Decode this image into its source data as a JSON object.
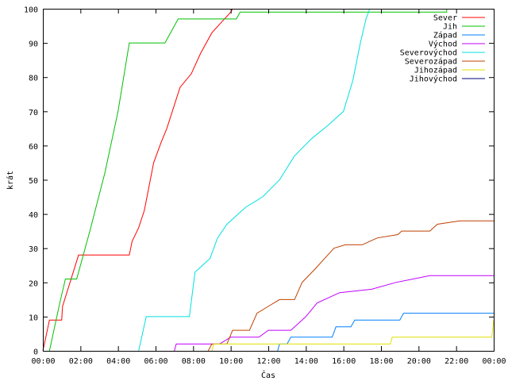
{
  "chart_data": {
    "type": "line",
    "xlabel": "Čas",
    "ylabel": "krát",
    "xlim": [
      0,
      24
    ],
    "ylim": [
      0,
      100
    ],
    "grid": false,
    "legend_position": "top-right",
    "x_ticks": [
      "00:00",
      "02:00",
      "04:00",
      "06:00",
      "08:00",
      "10:00",
      "12:00",
      "14:00",
      "16:00",
      "18:00",
      "20:00",
      "22:00",
      "00:00"
    ],
    "y_ticks": [
      "0",
      "10",
      "20",
      "30",
      "40",
      "50",
      "60",
      "70",
      "80",
      "90",
      "100"
    ],
    "series": [
      {
        "name": "Sever",
        "color": "#ff0000",
        "points": [
          [
            0.0,
            0
          ],
          [
            0.12,
            3
          ],
          [
            0.35,
            9
          ],
          [
            1.0,
            9
          ],
          [
            1.05,
            13
          ],
          [
            1.9,
            28
          ],
          [
            4.6,
            28
          ],
          [
            4.75,
            32
          ],
          [
            5.1,
            36
          ],
          [
            5.4,
            41
          ],
          [
            5.9,
            55
          ],
          [
            6.3,
            61
          ],
          [
            6.6,
            65
          ],
          [
            7.3,
            77
          ],
          [
            7.9,
            81
          ],
          [
            8.4,
            87
          ],
          [
            9.0,
            93
          ],
          [
            9.5,
            96
          ],
          [
            10.0,
            99
          ],
          [
            10.1,
            100
          ]
        ]
      },
      {
        "name": "Jih",
        "color": "#00c000",
        "points": [
          [
            0.35,
            0
          ],
          [
            0.9,
            14
          ],
          [
            1.2,
            21
          ],
          [
            1.8,
            21
          ],
          [
            2.5,
            35
          ],
          [
            3.3,
            52
          ],
          [
            4.0,
            70
          ],
          [
            4.6,
            90
          ],
          [
            6.5,
            90
          ],
          [
            6.9,
            94
          ],
          [
            7.2,
            97
          ],
          [
            10.3,
            97
          ],
          [
            10.5,
            99
          ],
          [
            21.5,
            99
          ],
          [
            21.5,
            100
          ]
        ]
      },
      {
        "name": "Západ",
        "color": "#0080ff",
        "points": [
          [
            12.5,
            0
          ],
          [
            12.6,
            2
          ],
          [
            13.0,
            2
          ],
          [
            13.2,
            4
          ],
          [
            15.4,
            4
          ],
          [
            15.6,
            7
          ],
          [
            16.4,
            7
          ],
          [
            16.6,
            9
          ],
          [
            19.0,
            9
          ],
          [
            19.2,
            11
          ],
          [
            24.0,
            11
          ]
        ]
      },
      {
        "name": "Východ",
        "color": "#c000ff",
        "points": [
          [
            7.0,
            0
          ],
          [
            7.1,
            2
          ],
          [
            9.4,
            2
          ],
          [
            10.0,
            4
          ],
          [
            11.5,
            4
          ],
          [
            12.0,
            6
          ],
          [
            13.2,
            6
          ],
          [
            14.0,
            10
          ],
          [
            14.6,
            14
          ],
          [
            15.8,
            17
          ],
          [
            17.5,
            18
          ],
          [
            18.8,
            20
          ],
          [
            20.6,
            22
          ],
          [
            24.0,
            22
          ]
        ]
      },
      {
        "name": "Severovýchod",
        "color": "#00e0e0",
        "points": [
          [
            5.1,
            0
          ],
          [
            5.5,
            10
          ],
          [
            7.8,
            10
          ],
          [
            8.1,
            23
          ],
          [
            8.9,
            27
          ],
          [
            9.3,
            33
          ],
          [
            9.8,
            37
          ],
          [
            10.2,
            39
          ],
          [
            10.8,
            42
          ],
          [
            11.7,
            45
          ],
          [
            12.6,
            50
          ],
          [
            13.4,
            57
          ],
          [
            14.3,
            62
          ],
          [
            15.2,
            66
          ],
          [
            16.0,
            70
          ],
          [
            16.5,
            79
          ],
          [
            16.9,
            90
          ],
          [
            17.2,
            97
          ],
          [
            17.4,
            100
          ]
        ]
      },
      {
        "name": "Severozápad",
        "color": "#c04000",
        "points": [
          [
            8.8,
            0
          ],
          [
            9.0,
            2
          ],
          [
            9.8,
            2
          ],
          [
            10.1,
            6
          ],
          [
            11.0,
            6
          ],
          [
            11.4,
            11
          ],
          [
            12.0,
            13
          ],
          [
            12.6,
            15
          ],
          [
            13.4,
            15
          ],
          [
            13.8,
            20
          ],
          [
            14.5,
            24
          ],
          [
            15.0,
            27
          ],
          [
            15.5,
            30
          ],
          [
            16.1,
            31
          ],
          [
            17.0,
            31
          ],
          [
            17.4,
            32
          ],
          [
            17.8,
            33
          ],
          [
            18.9,
            34
          ],
          [
            19.1,
            35
          ],
          [
            20.6,
            35
          ],
          [
            21.0,
            37
          ],
          [
            22.2,
            38
          ],
          [
            24.0,
            38
          ]
        ]
      },
      {
        "name": "Jihozápad",
        "color": "#e0e000",
        "points": [
          [
            9.0,
            0
          ],
          [
            9.1,
            2
          ],
          [
            18.5,
            2
          ],
          [
            18.6,
            4
          ],
          [
            23.9,
            4
          ],
          [
            24.0,
            9
          ]
        ]
      },
      {
        "name": "Jihovýchod",
        "color": "#000080",
        "points": []
      }
    ]
  }
}
